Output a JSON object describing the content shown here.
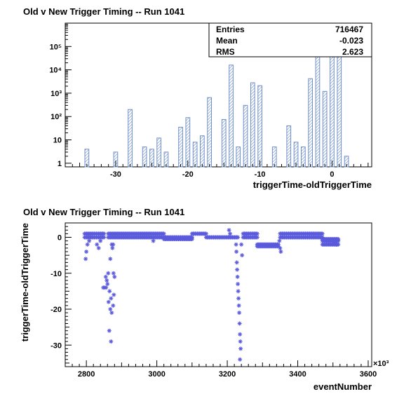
{
  "chart_data": [
    {
      "type": "bar",
      "title": "Old v New Trigger Timing -- Run 1041",
      "xlabel": "triggerTime-oldTriggerTime",
      "ylabel": "",
      "log_y": true,
      "xlim": [
        -37,
        5.5
      ],
      "ylim": [
        0.7,
        1000000
      ],
      "x_ticks": [
        -30,
        -20,
        -10,
        0
      ],
      "y_ticks": [
        1,
        10,
        100,
        1000,
        10000,
        100000
      ],
      "y_tick_labels": [
        "1",
        "10",
        "10²",
        "10³",
        "10⁴",
        "10⁵"
      ],
      "fill": "hatched",
      "color": "#6f8fc8",
      "x": [
        -34,
        -30,
        -28,
        -26,
        -25,
        -24,
        -23,
        -21,
        -20,
        -19,
        -18,
        -17,
        -15,
        -14,
        -13,
        -12,
        -11,
        -10,
        -8,
        -6,
        -5,
        -4,
        -3,
        -2,
        -1,
        0,
        1,
        2
      ],
      "values": [
        4,
        3,
        200,
        5,
        4,
        12,
        3,
        35,
        90,
        8,
        15,
        650,
        75,
        16000,
        5,
        300,
        2800,
        2100,
        5,
        40,
        8,
        5,
        4200,
        75000,
        1200,
        300000,
        500000,
        2
      ],
      "stats": {
        "entries_label": "Entries",
        "entries": "716467",
        "mean_label": "Mean",
        "mean": "-0.023",
        "rms_label": "RMS",
        "rms": "2.623"
      },
      "grid": false
    },
    {
      "type": "scatter",
      "title": "Old v New Trigger Timing -- Run 1041",
      "xlabel": "eventNumber",
      "ylabel": "triggerTime-oldTriggerTime",
      "x_multiplier": "×10³",
      "xlim": [
        2740,
        3610
      ],
      "ylim": [
        -36,
        4
      ],
      "x_ticks": [
        2800,
        3000,
        3200,
        3400,
        3600
      ],
      "y_ticks": [
        -30,
        -20,
        -10,
        0
      ],
      "marker": "star",
      "color": "#5a5adc",
      "bands": [
        {
          "x_start": 2795,
          "x_end": 2850,
          "y": [
            0,
            1
          ]
        },
        {
          "x_start": 2862,
          "x_end": 3020,
          "y": [
            0,
            1
          ]
        },
        {
          "x_start": 3020,
          "x_end": 3100,
          "y": [
            -0.5,
            0
          ]
        },
        {
          "x_start": 3100,
          "x_end": 3140,
          "y": [
            1
          ]
        },
        {
          "x_start": 3140,
          "x_end": 3230,
          "y": [
            0
          ]
        },
        {
          "x_start": 3245,
          "x_end": 3285,
          "y": [
            0,
            1
          ]
        },
        {
          "x_start": 3285,
          "x_end": 3345,
          "y": [
            -2,
            -2.5
          ]
        },
        {
          "x_start": 3350,
          "x_end": 3470,
          "y": [
            1,
            0
          ]
        },
        {
          "x_start": 3470,
          "x_end": 3515,
          "y": [
            -0.5,
            -1,
            -2
          ]
        }
      ],
      "points": [
        [
          2798,
          -6
        ],
        [
          2800,
          -4
        ],
        [
          2803,
          -2
        ],
        [
          2808,
          -1
        ],
        [
          2830,
          -2
        ],
        [
          2835,
          -3
        ],
        [
          2840,
          -1
        ],
        [
          2848,
          -14
        ],
        [
          2852,
          -14
        ],
        [
          2856,
          -14
        ],
        [
          2860,
          -13
        ],
        [
          2855,
          -11
        ],
        [
          2858,
          -12
        ],
        [
          2862,
          -10
        ],
        [
          2866,
          -15
        ],
        [
          2870,
          -17
        ],
        [
          2863,
          -18
        ],
        [
          2868,
          -20
        ],
        [
          2872,
          -21
        ],
        [
          2876,
          -19
        ],
        [
          2878,
          -16
        ],
        [
          2880,
          -11
        ],
        [
          2877,
          -10
        ],
        [
          2865,
          -26
        ],
        [
          2870,
          -29
        ],
        [
          2868,
          -6
        ],
        [
          2872,
          -2
        ],
        [
          2874,
          -3
        ],
        [
          2876,
          -2
        ],
        [
          2990,
          -1
        ],
        [
          3205,
          2
        ],
        [
          3208,
          1
        ],
        [
          3225,
          -2
        ],
        [
          3226,
          -4
        ],
        [
          3227,
          -7
        ],
        [
          3228,
          -9
        ],
        [
          3229,
          -11
        ],
        [
          3230,
          -13
        ],
        [
          3231,
          -15
        ],
        [
          3232,
          -17
        ],
        [
          3233,
          -19
        ],
        [
          3234,
          -21
        ],
        [
          3235,
          -24
        ],
        [
          3236,
          -27
        ],
        [
          3237,
          -29
        ],
        [
          3238,
          -31
        ],
        [
          3236,
          -34
        ],
        [
          3240,
          -2
        ],
        [
          3242,
          -5
        ],
        [
          3348,
          -1
        ],
        [
          3350,
          -3
        ],
        [
          3352,
          -4
        ],
        [
          3500,
          -1
        ],
        [
          3505,
          -1.5
        ],
        [
          3510,
          -2
        ]
      ],
      "grid": false
    }
  ]
}
